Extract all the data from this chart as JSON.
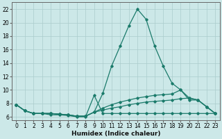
{
  "xlabel": "Humidex (Indice chaleur)",
  "background_color": "#cce8e8",
  "grid_color": "#aacccc",
  "line_color": "#1a7a6a",
  "x_values": [
    0,
    1,
    2,
    3,
    4,
    5,
    6,
    7,
    8,
    9,
    10,
    11,
    12,
    13,
    14,
    15,
    16,
    17,
    18,
    19,
    20,
    21,
    22,
    23
  ],
  "series": [
    [
      7.8,
      6.9,
      6.5,
      6.5,
      6.3,
      6.3,
      6.2,
      6.0,
      6.0,
      9.2,
      6.5,
      6.5,
      6.5,
      6.5,
      6.5,
      6.5,
      6.5,
      6.5,
      6.5,
      6.5,
      6.5,
      6.5,
      6.5,
      6.5
    ],
    [
      7.8,
      6.9,
      6.5,
      6.5,
      6.5,
      6.4,
      6.3,
      6.1,
      6.1,
      6.7,
      7.0,
      7.3,
      7.5,
      7.8,
      8.0,
      8.2,
      8.3,
      8.4,
      8.5,
      8.7,
      8.8,
      8.5,
      7.5,
      6.5
    ],
    [
      7.8,
      6.9,
      6.5,
      6.5,
      6.5,
      6.4,
      6.3,
      6.1,
      6.1,
      6.7,
      7.3,
      7.8,
      8.2,
      8.5,
      8.8,
      9.0,
      9.2,
      9.3,
      9.4,
      10.0,
      8.8,
      8.5,
      7.5,
      6.5
    ],
    [
      7.8,
      6.9,
      6.5,
      6.5,
      6.5,
      6.4,
      6.3,
      6.1,
      6.1,
      6.7,
      9.5,
      13.5,
      16.5,
      19.5,
      22.0,
      20.5,
      16.5,
      13.5,
      11.0,
      10.0,
      8.5,
      8.5,
      7.5,
      6.5
    ]
  ],
  "ylim": [
    5.5,
    23.0
  ],
  "xlim": [
    -0.5,
    23.5
  ],
  "yticks": [
    6,
    8,
    10,
    12,
    14,
    16,
    18,
    20,
    22
  ],
  "xticks": [
    0,
    1,
    2,
    3,
    4,
    5,
    6,
    7,
    8,
    9,
    10,
    11,
    12,
    13,
    14,
    15,
    16,
    17,
    18,
    19,
    20,
    21,
    22,
    23
  ],
  "tick_fontsize": 5.5,
  "label_fontsize": 6.5
}
